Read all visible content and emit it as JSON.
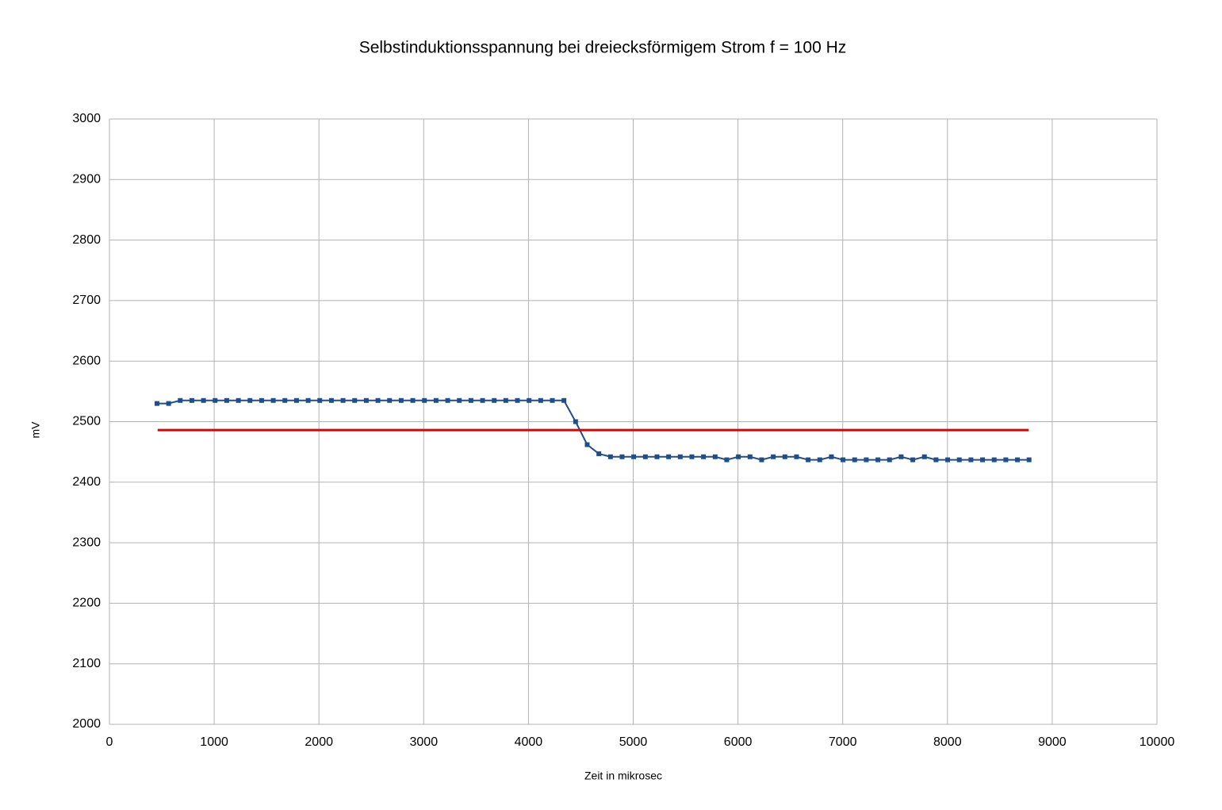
{
  "chart_data": {
    "type": "line",
    "title": "Selbstinduktionsspannung bei dreiecksförmigem Strom f = 100 Hz",
    "x_label": "Zeit in mikrosec",
    "y_label": "mV",
    "xlim": [
      0,
      10000
    ],
    "xticks": [
      0,
      1000,
      2000,
      3000,
      4000,
      5000,
      6000,
      7000,
      8000,
      9000,
      10000
    ],
    "ylim": [
      2000,
      3000
    ],
    "yticks": [
      2000,
      2100,
      2200,
      2300,
      2400,
      2500,
      2600,
      2700,
      2800,
      2900,
      3000
    ],
    "grid": true,
    "series": [
      {
        "color": "#1f4e8c",
        "markers": true,
        "x": [
          454,
          565,
          676,
          787,
          898,
          1009,
          1120,
          1231,
          1342,
          1453,
          1564,
          1675,
          1786,
          1897,
          2008,
          2119,
          2230,
          2341,
          2452,
          2563,
          2674,
          2785,
          2896,
          3007,
          3118,
          3229,
          3340,
          3451,
          3562,
          3673,
          3784,
          3895,
          4006,
          4117,
          4228,
          4339,
          4450,
          4561,
          4672,
          4783,
          4894,
          5005,
          5116,
          5227,
          5338,
          5449,
          5560,
          5671,
          5782,
          5893,
          6004,
          6115,
          6226,
          6337,
          6448,
          6559,
          6670,
          6781,
          6892,
          7003,
          7114,
          7225,
          7336,
          7447,
          7558,
          7669,
          7780,
          7891,
          8002,
          8113,
          8224,
          8335,
          8446,
          8557,
          8668,
          8779
        ],
        "values": [
          2530,
          2530,
          2535,
          2535,
          2535,
          2535,
          2535,
          2535,
          2535,
          2535,
          2535,
          2535,
          2535,
          2535,
          2535,
          2535,
          2535,
          2535,
          2535,
          2535,
          2535,
          2535,
          2535,
          2535,
          2535,
          2535,
          2535,
          2535,
          2535,
          2535,
          2535,
          2535,
          2535,
          2535,
          2535,
          2535,
          2500,
          2462,
          2447,
          2442,
          2442,
          2442,
          2442,
          2442,
          2442,
          2442,
          2442,
          2442,
          2442,
          2437,
          2442,
          2442,
          2437,
          2442,
          2442,
          2442,
          2437,
          2437,
          2442,
          2437,
          2437,
          2437,
          2437,
          2437,
          2442,
          2437,
          2442,
          2437,
          2437,
          2437,
          2437,
          2437,
          2437,
          2437,
          2437,
          2437
        ]
      },
      {
        "color": "#e00000",
        "markers": false,
        "x": [
          460,
          8775
        ],
        "values": [
          2486,
          2486
        ]
      }
    ]
  }
}
